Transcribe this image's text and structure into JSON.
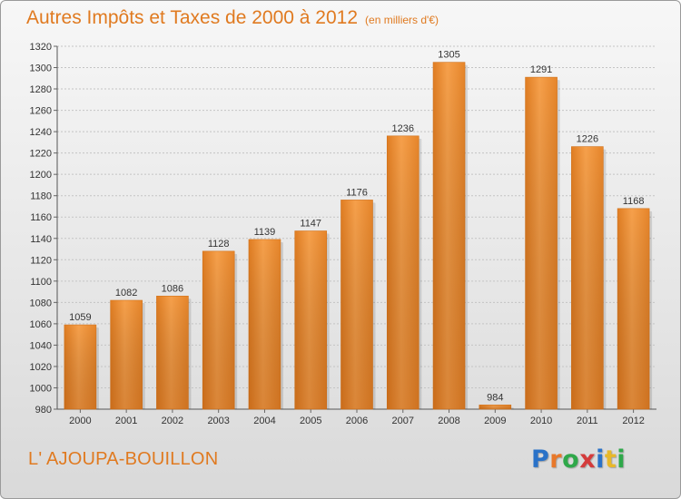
{
  "chart_data": {
    "type": "bar",
    "title": "Autres Impôts et Taxes de 2000 à 2012",
    "subtitle": "(en milliers d'€)",
    "categories": [
      "2000",
      "2001",
      "2002",
      "2003",
      "2004",
      "2005",
      "2006",
      "2007",
      "2008",
      "2009",
      "2010",
      "2011",
      "2012"
    ],
    "values": [
      1059,
      1082,
      1086,
      1128,
      1139,
      1147,
      1176,
      1236,
      1305,
      984,
      1291,
      1226,
      1168
    ],
    "ylim": [
      980,
      1320
    ],
    "yticks": [
      980,
      1000,
      1020,
      1040,
      1060,
      1080,
      1100,
      1120,
      1140,
      1160,
      1180,
      1200,
      1220,
      1240,
      1260,
      1280,
      1300,
      1320
    ],
    "xlabel": "",
    "ylabel": "",
    "grid": true,
    "bar_color": "#f0922f"
  },
  "footer": {
    "commune": "L' AJOUPA-BOUILLON",
    "logo_letters": [
      "P",
      "r",
      "o",
      "x",
      "i",
      "t",
      "i"
    ],
    "logo_colors": [
      "#2a72c8",
      "#e8782a",
      "#2fa84a",
      "#d43b3b",
      "#2a72c8",
      "#e8b82a",
      "#2fa84a"
    ]
  }
}
